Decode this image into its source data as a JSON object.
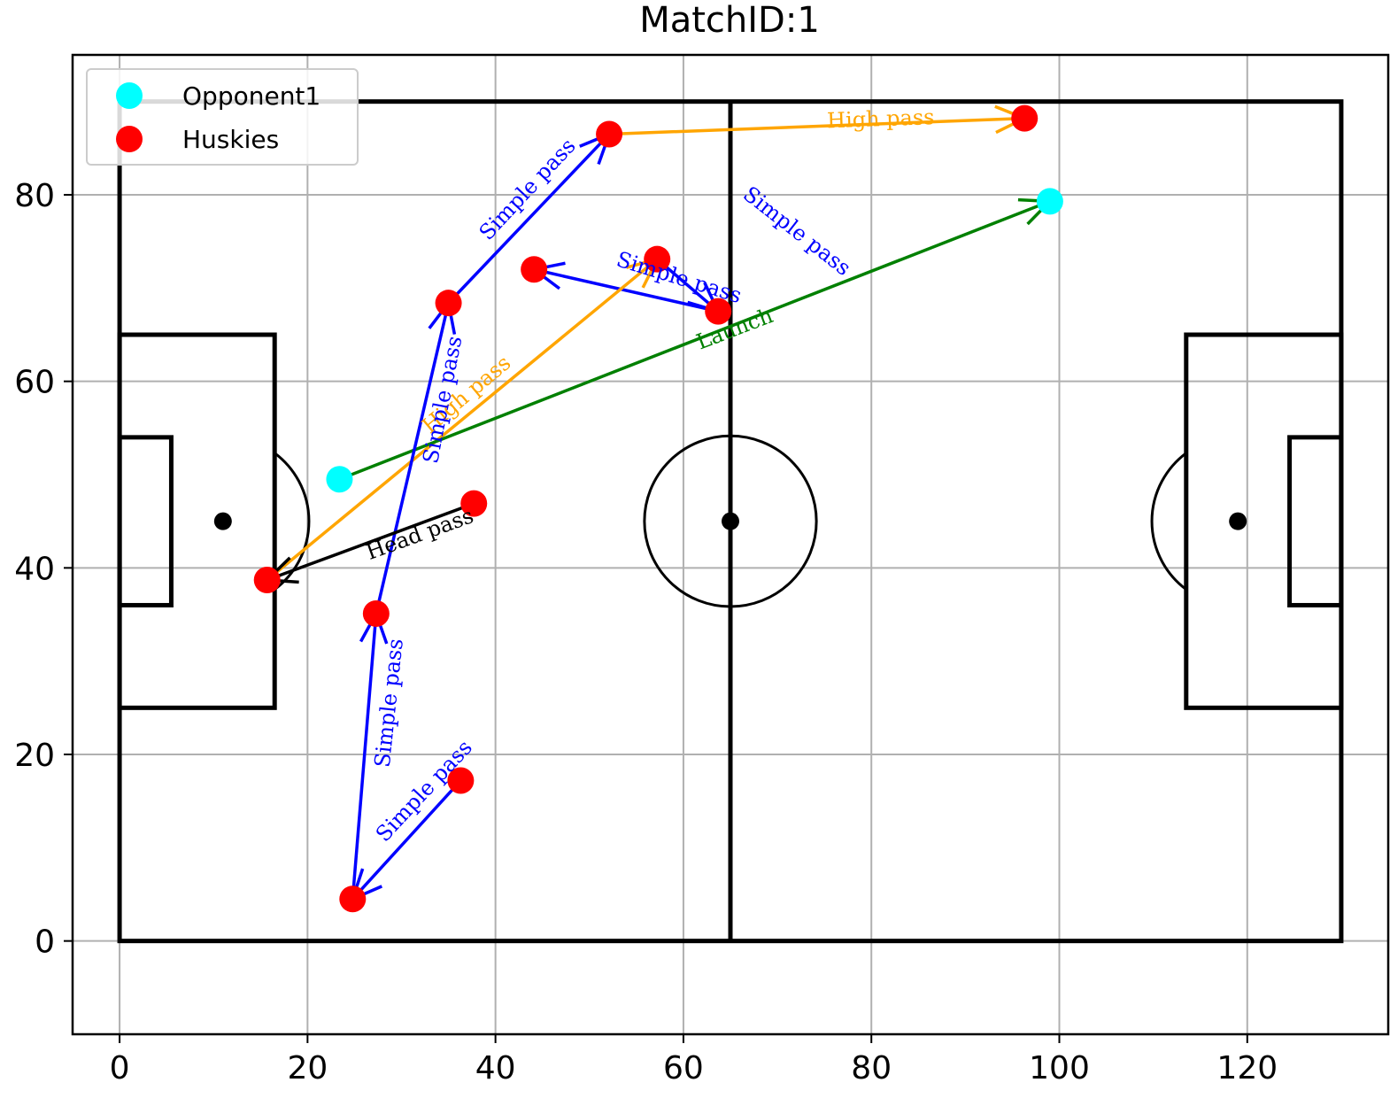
{
  "chart_data": {
    "type": "scatter",
    "title": "MatchID:1",
    "xlabel": "",
    "ylabel": "",
    "xlim": [
      -5,
      135
    ],
    "ylim": [
      -10,
      95
    ],
    "xticks": [
      0,
      20,
      40,
      60,
      80,
      100,
      120
    ],
    "yticks": [
      0,
      20,
      40,
      60,
      80
    ],
    "grid": true,
    "legend_position": "upper-left",
    "series": [
      {
        "name": "Opponent1",
        "color": "#00ffff",
        "points": [
          [
            23.4,
            49.5
          ],
          [
            99.0,
            79.3
          ]
        ]
      },
      {
        "name": "Huskies",
        "color": "#ff0000",
        "points": [
          [
            52.1,
            86.5
          ],
          [
            96.3,
            88.2
          ],
          [
            35.0,
            68.4
          ],
          [
            44.1,
            72.0
          ],
          [
            57.2,
            73.1
          ],
          [
            63.7,
            67.5
          ],
          [
            37.7,
            46.9
          ],
          [
            15.7,
            38.7
          ],
          [
            27.3,
            35.1
          ],
          [
            36.3,
            17.2
          ],
          [
            24.8,
            4.5
          ]
        ]
      }
    ],
    "passes": [
      {
        "label": "Simple pass",
        "color": "#0000ff",
        "from": [
          35.0,
          68.4
        ],
        "to": [
          52.1,
          86.5
        ]
      },
      {
        "label": "High pass",
        "color": "#ffa500",
        "from": [
          52.1,
          86.5
        ],
        "to": [
          96.3,
          88.2
        ]
      },
      {
        "label": "Simple pass",
        "color": "#0000ff",
        "from": [
          57.2,
          73.1
        ],
        "to": [
          63.7,
          67.5
        ]
      },
      {
        "label": "Simple pass",
        "color": "#0000ff",
        "from": [
          63.7,
          67.5
        ],
        "to": [
          44.1,
          72.0
        ]
      },
      {
        "label": "High pass",
        "color": "#ffa500",
        "from": [
          15.7,
          38.7
        ],
        "to": [
          57.2,
          73.1
        ]
      },
      {
        "label": "Launch",
        "color": "#008000",
        "from": [
          23.4,
          49.5
        ],
        "to": [
          99.0,
          79.3
        ]
      },
      {
        "label": "Simple pass",
        "color": "#0000ff",
        "from": [
          27.3,
          35.1
        ],
        "to": [
          35.0,
          68.4
        ]
      },
      {
        "label": "Head pass",
        "color": "#000000",
        "from": [
          37.7,
          46.9
        ],
        "to": [
          15.7,
          38.7
        ]
      },
      {
        "label": "Simple pass",
        "color": "#0000ff",
        "from": [
          24.8,
          4.5
        ],
        "to": [
          27.3,
          35.1
        ]
      },
      {
        "label": "Simple pass",
        "color": "#0000ff",
        "from": [
          36.3,
          17.2
        ],
        "to": [
          24.8,
          4.5
        ]
      }
    ],
    "annotations": [
      {
        "text": "Simple pass",
        "color": "#0000ff",
        "at": [
          43.5,
          80.5
        ],
        "angle": -47
      },
      {
        "text": "High pass",
        "color": "#ffa500",
        "at": [
          81.0,
          88.0
        ],
        "angle": -2
      },
      {
        "text": "Simple pass",
        "color": "#0000ff",
        "at": [
          72.0,
          76.0
        ],
        "angle": 38
      },
      {
        "text": "Simple pass",
        "color": "#0000ff",
        "at": [
          59.5,
          71.0
        ],
        "angle": 17
      },
      {
        "text": "High pass",
        "color": "#ffa500",
        "at": [
          37.0,
          58.5
        ],
        "angle": -40
      },
      {
        "text": "Launch",
        "color": "#008000",
        "at": [
          65.5,
          65.5
        ],
        "angle": -21
      },
      {
        "text": "Simple pass",
        "color": "#0000ff",
        "at": [
          34.5,
          58.0
        ],
        "angle": -79
      },
      {
        "text": "Head pass",
        "color": "#000000",
        "at": [
          32.0,
          43.5
        ],
        "angle": -20
      },
      {
        "text": "Simple pass",
        "color": "#0000ff",
        "at": [
          28.8,
          25.5
        ],
        "angle": -84
      },
      {
        "text": "Simple pass",
        "color": "#0000ff",
        "at": [
          32.5,
          16.0
        ],
        "angle": -47
      }
    ]
  }
}
